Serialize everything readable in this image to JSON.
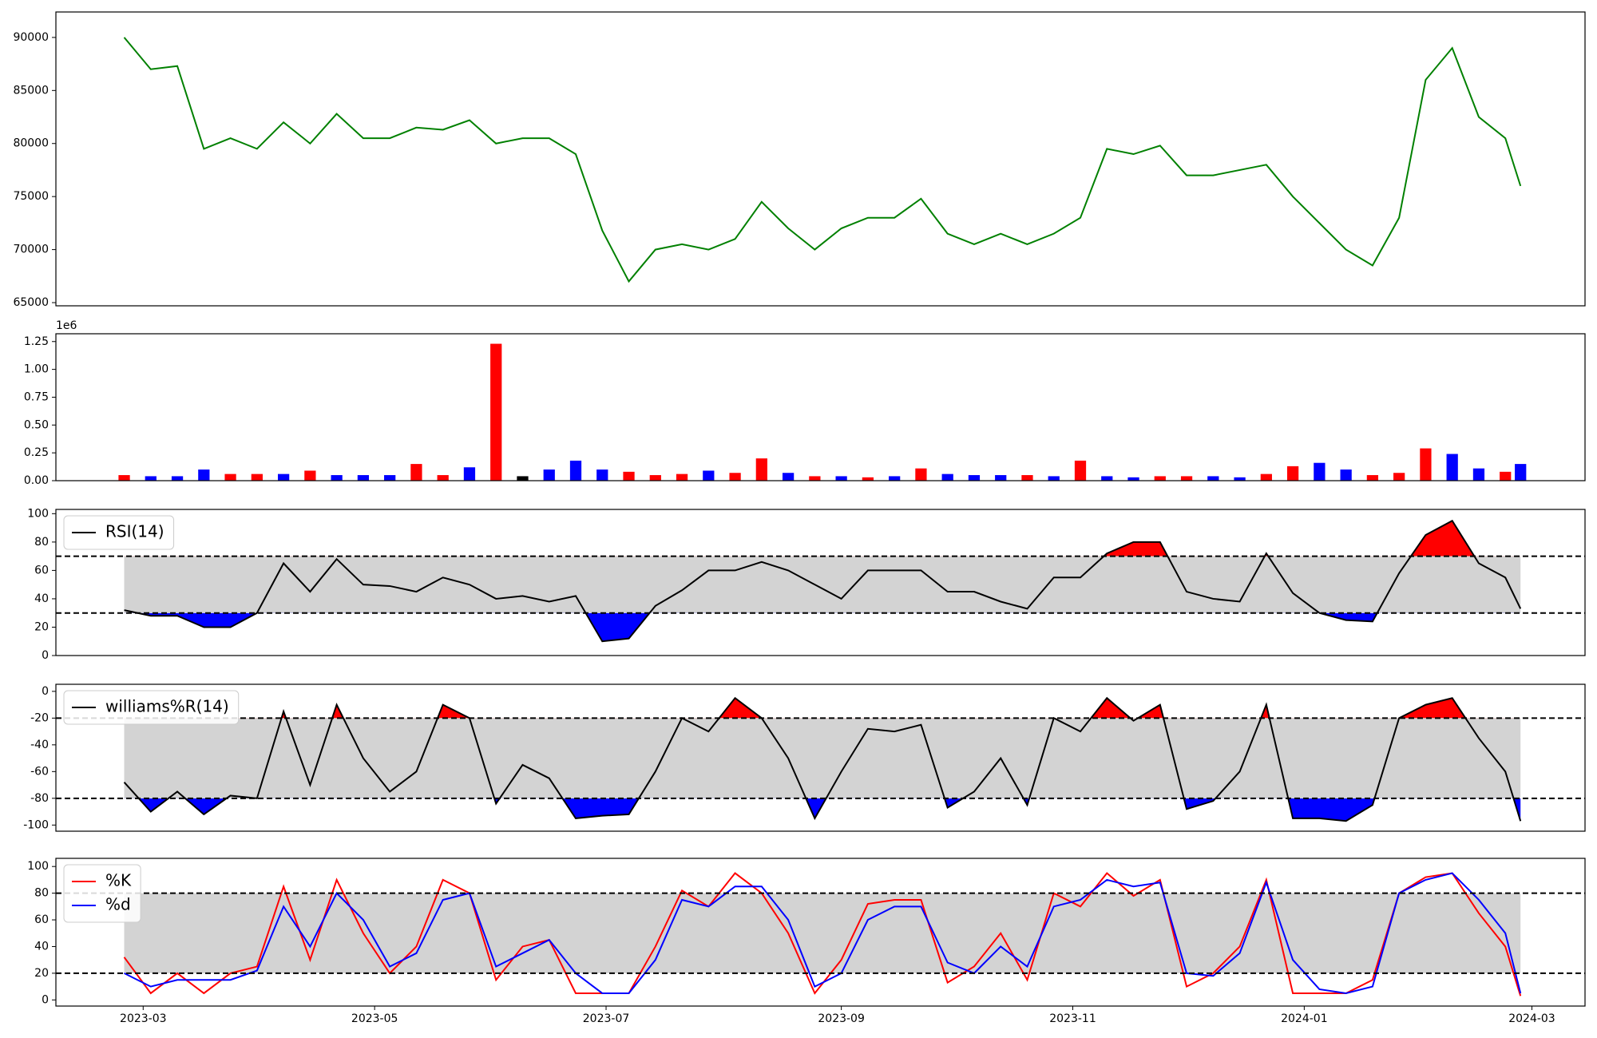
{
  "chart_data": [
    {
      "type": "line",
      "x": [
        "2023-02-24",
        "2023-03-03",
        "2023-03-10",
        "2023-03-17",
        "2023-03-24",
        "2023-03-31",
        "2023-04-07",
        "2023-04-14",
        "2023-04-21",
        "2023-04-28",
        "2023-05-05",
        "2023-05-12",
        "2023-05-19",
        "2023-05-26",
        "2023-06-02",
        "2023-06-09",
        "2023-06-16",
        "2023-06-23",
        "2023-06-30",
        "2023-07-07",
        "2023-07-14",
        "2023-07-21",
        "2023-07-28",
        "2023-08-04",
        "2023-08-11",
        "2023-08-18",
        "2023-08-25",
        "2023-09-01",
        "2023-09-08",
        "2023-09-15",
        "2023-09-22",
        "2023-09-29",
        "2023-10-06",
        "2023-10-13",
        "2023-10-20",
        "2023-10-27",
        "2023-11-03",
        "2023-11-10",
        "2023-11-17",
        "2023-11-24",
        "2023-12-01",
        "2023-12-08",
        "2023-12-15",
        "2023-12-22",
        "2023-12-29",
        "2024-01-05",
        "2024-01-12",
        "2024-01-19",
        "2024-01-26",
        "2024-02-02",
        "2024-02-09",
        "2024-02-16",
        "2024-02-23",
        "2024-02-27"
      ],
      "series": [
        {
          "color": "green",
          "values": [
            90000,
            87000,
            87300,
            79500,
            80500,
            79500,
            82000,
            80000,
            82800,
            80500,
            80500,
            81500,
            81300,
            82200,
            80000,
            80500,
            80500,
            79000,
            71800,
            67000,
            70000,
            70500,
            70000,
            71000,
            74500,
            72000,
            70000,
            72000,
            73000,
            73000,
            74800,
            71500,
            70500,
            71500,
            70500,
            71500,
            73000,
            79500,
            79000,
            79800,
            77000,
            77000,
            77500,
            78000,
            75000,
            72500,
            70000,
            68500,
            73000,
            86000,
            89000,
            82500,
            80500,
            76000
          ]
        }
      ],
      "xlim": [
        "2023-02-06",
        "2024-03-15"
      ],
      "ylim": [
        64700,
        92400
      ],
      "yticks": [
        65000,
        70000,
        75000,
        80000,
        85000,
        90000
      ]
    },
    {
      "type": "bar",
      "x": [
        "2023-02-24",
        "2023-03-03",
        "2023-03-10",
        "2023-03-17",
        "2023-03-24",
        "2023-03-31",
        "2023-04-07",
        "2023-04-14",
        "2023-04-21",
        "2023-04-28",
        "2023-05-05",
        "2023-05-12",
        "2023-05-19",
        "2023-05-26",
        "2023-06-02",
        "2023-06-09",
        "2023-06-16",
        "2023-06-23",
        "2023-06-30",
        "2023-07-07",
        "2023-07-14",
        "2023-07-21",
        "2023-07-28",
        "2023-08-04",
        "2023-08-11",
        "2023-08-18",
        "2023-08-25",
        "2023-09-01",
        "2023-09-08",
        "2023-09-15",
        "2023-09-22",
        "2023-09-29",
        "2023-10-06",
        "2023-10-13",
        "2023-10-20",
        "2023-10-27",
        "2023-11-03",
        "2023-11-10",
        "2023-11-17",
        "2023-11-24",
        "2023-12-01",
        "2023-12-08",
        "2023-12-15",
        "2023-12-22",
        "2023-12-29",
        "2024-01-05",
        "2024-01-12",
        "2024-01-19",
        "2024-01-26",
        "2024-02-02",
        "2024-02-09",
        "2024-02-16",
        "2024-02-23",
        "2024-02-27"
      ],
      "values": [
        50000,
        40000,
        40000,
        100000,
        60000,
        60000,
        60000,
        90000,
        50000,
        50000,
        50000,
        150000,
        50000,
        120000,
        1230000,
        40000,
        100000,
        180000,
        100000,
        80000,
        50000,
        60000,
        90000,
        70000,
        200000,
        70000,
        40000,
        40000,
        30000,
        40000,
        110000,
        60000,
        50000,
        50000,
        50000,
        40000,
        180000,
        40000,
        30000,
        40000,
        40000,
        40000,
        30000,
        60000,
        130000,
        160000,
        100000,
        50000,
        70000,
        290000,
        240000,
        110000,
        80000,
        150000
      ],
      "colors": [
        "red",
        "blue",
        "blue",
        "blue",
        "red",
        "red",
        "blue",
        "red",
        "blue",
        "blue",
        "blue",
        "red",
        "red",
        "blue",
        "red",
        "black",
        "blue",
        "blue",
        "blue",
        "red",
        "red",
        "red",
        "blue",
        "red",
        "red",
        "blue",
        "red",
        "blue",
        "red",
        "blue",
        "red",
        "blue",
        "blue",
        "blue",
        "red",
        "blue",
        "red",
        "blue",
        "blue",
        "red",
        "red",
        "blue",
        "blue",
        "red",
        "red",
        "blue",
        "blue",
        "red",
        "red",
        "red",
        "blue",
        "blue",
        "red",
        "blue"
      ],
      "offset_text": "1e6",
      "xlim": [
        "2023-02-06",
        "2024-03-15"
      ],
      "ylim": [
        0,
        1320000
      ],
      "yticks": [
        {
          "value": 0,
          "label": "0.00"
        },
        {
          "value": 250000,
          "label": "0.25"
        },
        {
          "value": 500000,
          "label": "0.50"
        },
        {
          "value": 750000,
          "label": "0.75"
        },
        {
          "value": 1000000,
          "label": "1.00"
        },
        {
          "value": 1250000,
          "label": "1.25"
        }
      ]
    },
    {
      "type": "line",
      "x": [
        "2023-02-24",
        "2023-03-03",
        "2023-03-10",
        "2023-03-17",
        "2023-03-24",
        "2023-03-31",
        "2023-04-07",
        "2023-04-14",
        "2023-04-21",
        "2023-04-28",
        "2023-05-05",
        "2023-05-12",
        "2023-05-19",
        "2023-05-26",
        "2023-06-02",
        "2023-06-09",
        "2023-06-16",
        "2023-06-23",
        "2023-06-30",
        "2023-07-07",
        "2023-07-14",
        "2023-07-21",
        "2023-07-28",
        "2023-08-04",
        "2023-08-11",
        "2023-08-18",
        "2023-08-25",
        "2023-09-01",
        "2023-09-08",
        "2023-09-15",
        "2023-09-22",
        "2023-09-29",
        "2023-10-06",
        "2023-10-13",
        "2023-10-20",
        "2023-10-27",
        "2023-11-03",
        "2023-11-10",
        "2023-11-17",
        "2023-11-24",
        "2023-12-01",
        "2023-12-08",
        "2023-12-15",
        "2023-12-22",
        "2023-12-29",
        "2024-01-05",
        "2024-01-12",
        "2024-01-19",
        "2024-01-26",
        "2024-02-02",
        "2024-02-09",
        "2024-02-16",
        "2024-02-23",
        "2024-02-27"
      ],
      "series": [
        {
          "name": "RSI(14)",
          "color": "black",
          "values": [
            32,
            28,
            28,
            20,
            20,
            30,
            65,
            45,
            68,
            50,
            49,
            45,
            55,
            50,
            40,
            42,
            38,
            42,
            10,
            12,
            35,
            46,
            60,
            60,
            66,
            60,
            50,
            40,
            60,
            60,
            60,
            45,
            45,
            38,
            33,
            55,
            55,
            72,
            80,
            80,
            45,
            40,
            38,
            72,
            44,
            30,
            25,
            24,
            58,
            85,
            95,
            65,
            55,
            33
          ]
        }
      ],
      "thresholds": [
        30,
        70
      ],
      "band_color": "#d3d3d3",
      "above_color": "red",
      "below_color": "blue",
      "legend": "upper left",
      "xlim": [
        "2023-02-06",
        "2024-03-15"
      ],
      "ylim": [
        0,
        103
      ],
      "yticks": [
        0,
        20,
        40,
        60,
        80,
        100
      ]
    },
    {
      "type": "line",
      "x": [
        "2023-02-24",
        "2023-03-03",
        "2023-03-10",
        "2023-03-17",
        "2023-03-24",
        "2023-03-31",
        "2023-04-07",
        "2023-04-14",
        "2023-04-21",
        "2023-04-28",
        "2023-05-05",
        "2023-05-12",
        "2023-05-19",
        "2023-05-26",
        "2023-06-02",
        "2023-06-09",
        "2023-06-16",
        "2023-06-23",
        "2023-06-30",
        "2023-07-07",
        "2023-07-14",
        "2023-07-21",
        "2023-07-28",
        "2023-08-04",
        "2023-08-11",
        "2023-08-18",
        "2023-08-25",
        "2023-09-01",
        "2023-09-08",
        "2023-09-15",
        "2023-09-22",
        "2023-09-29",
        "2023-10-06",
        "2023-10-13",
        "2023-10-20",
        "2023-10-27",
        "2023-11-03",
        "2023-11-10",
        "2023-11-17",
        "2023-11-24",
        "2023-12-01",
        "2023-12-08",
        "2023-12-15",
        "2023-12-22",
        "2023-12-29",
        "2024-01-05",
        "2024-01-12",
        "2024-01-19",
        "2024-01-26",
        "2024-02-02",
        "2024-02-09",
        "2024-02-16",
        "2024-02-23",
        "2024-02-27"
      ],
      "series": [
        {
          "name": "williams%R(14)",
          "color": "black",
          "values": [
            -68,
            -90,
            -75,
            -92,
            -78,
            -80,
            -15,
            -70,
            -10,
            -50,
            -75,
            -60,
            -10,
            -20,
            -84,
            -55,
            -65,
            -95,
            -93,
            -92,
            -60,
            -20,
            -30,
            -5,
            -20,
            -50,
            -95,
            -60,
            -28,
            -30,
            -25,
            -87,
            -75,
            -50,
            -85,
            -20,
            -30,
            -5,
            -22,
            -10,
            -88,
            -82,
            -60,
            -10,
            -95,
            -95,
            -97,
            -85,
            -20,
            -10,
            -5,
            -35,
            -60,
            -97
          ]
        }
      ],
      "thresholds": [
        -80,
        -20
      ],
      "band_color": "#d3d3d3",
      "above_color": "red",
      "below_color": "blue",
      "legend": "upper left",
      "xlim": [
        "2023-02-06",
        "2024-03-15"
      ],
      "ylim": [
        -104.6,
        5.3
      ],
      "yticks": [
        -100,
        -80,
        -60,
        -40,
        -20,
        0
      ]
    },
    {
      "type": "line",
      "x": [
        "2023-02-24",
        "2023-03-03",
        "2023-03-10",
        "2023-03-17",
        "2023-03-24",
        "2023-03-31",
        "2023-04-07",
        "2023-04-14",
        "2023-04-21",
        "2023-04-28",
        "2023-05-05",
        "2023-05-12",
        "2023-05-19",
        "2023-05-26",
        "2023-06-02",
        "2023-06-09",
        "2023-06-16",
        "2023-06-23",
        "2023-06-30",
        "2023-07-07",
        "2023-07-14",
        "2023-07-21",
        "2023-07-28",
        "2023-08-04",
        "2023-08-11",
        "2023-08-18",
        "2023-08-25",
        "2023-09-01",
        "2023-09-08",
        "2023-09-15",
        "2023-09-22",
        "2023-09-29",
        "2023-10-06",
        "2023-10-13",
        "2023-10-20",
        "2023-10-27",
        "2023-11-03",
        "2023-11-10",
        "2023-11-17",
        "2023-11-24",
        "2023-12-01",
        "2023-12-08",
        "2023-12-15",
        "2023-12-22",
        "2023-12-29",
        "2024-01-05",
        "2024-01-12",
        "2024-01-19",
        "2024-01-26",
        "2024-02-02",
        "2024-02-09",
        "2024-02-16",
        "2024-02-23",
        "2024-02-27"
      ],
      "series": [
        {
          "name": "%K",
          "color": "red",
          "values": [
            32,
            5,
            20,
            5,
            20,
            25,
            85,
            30,
            90,
            50,
            20,
            40,
            90,
            80,
            15,
            40,
            45,
            5,
            5,
            5,
            40,
            82,
            70,
            95,
            80,
            50,
            5,
            30,
            72,
            75,
            75,
            13,
            25,
            50,
            15,
            80,
            70,
            95,
            78,
            90,
            10,
            20,
            40,
            90,
            5,
            5,
            5,
            15,
            80,
            92,
            95,
            65,
            40,
            3
          ]
        },
        {
          "name": "%d",
          "color": "blue",
          "values": [
            20,
            10,
            15,
            15,
            15,
            22,
            70,
            40,
            80,
            60,
            25,
            35,
            75,
            80,
            25,
            35,
            45,
            20,
            5,
            5,
            30,
            75,
            70,
            85,
            85,
            60,
            10,
            20,
            60,
            70,
            70,
            28,
            20,
            40,
            25,
            70,
            75,
            90,
            85,
            88,
            20,
            18,
            35,
            88,
            30,
            8,
            5,
            10,
            80,
            90,
            95,
            75,
            50,
            5
          ]
        }
      ],
      "thresholds": [
        20,
        80
      ],
      "band_color": "#d3d3d3",
      "legend": "upper left",
      "xlim": [
        "2023-02-06",
        "2024-03-15"
      ],
      "ylim": [
        -4.6,
        106.1
      ],
      "yticks": [
        0,
        20,
        40,
        60,
        80,
        100
      ],
      "xticks": [
        "2023-03",
        "2023-05",
        "2023-07",
        "2023-09",
        "2023-11",
        "2024-01",
        "2024-03"
      ]
    }
  ]
}
